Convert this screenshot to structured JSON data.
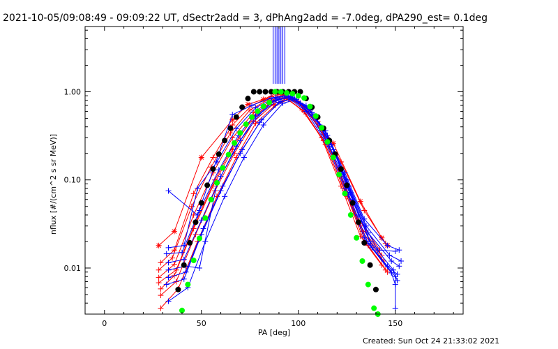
{
  "header": {
    "title": "2021-10-05/09:08:49 - 09:09:22 UT, dSectr2add = 3, dPhAng2add = -7.0deg, dPA290_est=  0.1deg"
  },
  "footer": {
    "created": "Created: Sun Oct 24 21:33:02 2021"
  },
  "chart_data": {
    "type": "line",
    "title": "2021-10-05/09:08:49 - 09:09:22 UT, dSectr2add = 3, dPhAng2add = -7.0deg, dPA290_est=  0.1deg",
    "xlabel": "PA [deg]",
    "ylabel": "nflux [#/(cm^2 s sr MeV)]",
    "xlim": [
      -10,
      185
    ],
    "ylim": [
      0.003,
      5.5
    ],
    "yscale": "log",
    "x_ticks": [
      0,
      50,
      100,
      150
    ],
    "x_tick_labels": [
      "0",
      "50",
      "100",
      "150"
    ],
    "y_ticks": [
      0.01,
      0.1,
      1.0
    ],
    "y_tick_labels": [
      "0.01",
      "0.10",
      "1.00"
    ],
    "grid": false,
    "colors": {
      "red_series": "#ff0000",
      "blue_series": "#0000ff",
      "black_model": "#000000",
      "green_model": "#00ff00"
    },
    "series": [
      {
        "color": "red",
        "marker": "star",
        "x": [
          28,
          36,
          50,
          66,
          74,
          82,
          89,
          96,
          106,
          118,
          132,
          143,
          146
        ],
        "y": [
          0.018,
          0.026,
          0.18,
          0.48,
          0.72,
          0.82,
          0.97,
          0.86,
          0.62,
          0.26,
          0.057,
          0.022,
          0.018
        ]
      },
      {
        "color": "red",
        "marker": "plus",
        "x": [
          29,
          36,
          46,
          56,
          66,
          76,
          86,
          92,
          100,
          110,
          122,
          134,
          145
        ],
        "y": [
          0.0115,
          0.016,
          0.07,
          0.18,
          0.42,
          0.7,
          0.88,
          0.95,
          0.78,
          0.46,
          0.16,
          0.045,
          0.019
        ]
      },
      {
        "color": "red",
        "marker": "plus",
        "x": [
          28,
          35,
          45,
          55,
          65,
          75,
          85,
          92,
          101,
          111,
          121,
          131,
          142
        ],
        "y": [
          0.0095,
          0.013,
          0.05,
          0.14,
          0.34,
          0.62,
          0.83,
          0.92,
          0.74,
          0.4,
          0.13,
          0.036,
          0.016
        ]
      },
      {
        "color": "red",
        "marker": "plus",
        "x": [
          28,
          36,
          46,
          56,
          66,
          77,
          86,
          93,
          102,
          112,
          122,
          132,
          143
        ],
        "y": [
          0.0078,
          0.011,
          0.04,
          0.12,
          0.3,
          0.58,
          0.8,
          0.9,
          0.7,
          0.36,
          0.11,
          0.03,
          0.014
        ]
      },
      {
        "color": "red",
        "marker": "plus",
        "x": [
          28,
          37,
          47,
          57,
          67,
          78,
          87,
          94,
          103,
          113,
          123,
          133,
          144
        ],
        "y": [
          0.0068,
          0.0095,
          0.033,
          0.1,
          0.26,
          0.54,
          0.78,
          0.88,
          0.66,
          0.33,
          0.095,
          0.026,
          0.012
        ]
      },
      {
        "color": "red",
        "marker": "plus",
        "x": [
          29,
          36,
          46,
          56,
          66,
          76,
          86,
          93,
          102,
          112,
          122,
          132,
          143
        ],
        "y": [
          0.0058,
          0.0082,
          0.028,
          0.085,
          0.22,
          0.5,
          0.75,
          0.86,
          0.62,
          0.3,
          0.085,
          0.023,
          0.0108
        ]
      },
      {
        "color": "red",
        "marker": "plus",
        "x": [
          29,
          37,
          47,
          57,
          67,
          77,
          87,
          94,
          103,
          113,
          124,
          134,
          145
        ],
        "y": [
          0.0049,
          0.007,
          0.024,
          0.075,
          0.2,
          0.46,
          0.72,
          0.84,
          0.6,
          0.28,
          0.075,
          0.02,
          0.0095
        ]
      },
      {
        "color": "red",
        "marker": "plus",
        "x": [
          29,
          38,
          48,
          58,
          68,
          78,
          88,
          95,
          104,
          114,
          125,
          136,
          146
        ],
        "y": [
          0.0035,
          0.0058,
          0.02,
          0.065,
          0.18,
          0.44,
          0.7,
          0.82,
          0.56,
          0.25,
          0.065,
          0.018,
          0.009
        ]
      },
      {
        "color": "blue",
        "marker": "plus",
        "x": [
          33,
          48,
          66,
          76,
          86,
          93,
          101,
          111,
          121,
          131,
          141,
          150
        ],
        "y": [
          0.075,
          0.04,
          0.55,
          0.7,
          0.85,
          0.9,
          0.74,
          0.42,
          0.14,
          0.04,
          0.016,
          0.0155
        ]
      },
      {
        "color": "blue",
        "marker": "plus",
        "x": [
          33,
          41,
          48,
          58,
          68,
          78,
          88,
          95,
          104,
          114,
          124,
          134,
          146,
          152
        ],
        "y": [
          0.017,
          0.018,
          0.08,
          0.16,
          0.38,
          0.66,
          0.86,
          0.9,
          0.7,
          0.36,
          0.12,
          0.036,
          0.018,
          0.016
        ]
      },
      {
        "color": "blue",
        "marker": "plus",
        "x": [
          32,
          40,
          49,
          59,
          69,
          79,
          89,
          96,
          105,
          115,
          125,
          135,
          147,
          153
        ],
        "y": [
          0.0145,
          0.015,
          0.045,
          0.13,
          0.32,
          0.6,
          0.84,
          0.88,
          0.66,
          0.32,
          0.1,
          0.03,
          0.014,
          0.012
        ]
      },
      {
        "color": "blue",
        "marker": "plus",
        "x": [
          33,
          41,
          50,
          60,
          70,
          80,
          90,
          97,
          106,
          116,
          126,
          136,
          148,
          152
        ],
        "y": [
          0.0115,
          0.0125,
          0.035,
          0.11,
          0.28,
          0.56,
          0.82,
          0.86,
          0.62,
          0.28,
          0.085,
          0.025,
          0.012,
          0.0105
        ]
      },
      {
        "color": "blue",
        "marker": "plus",
        "x": [
          33,
          42,
          49,
          58,
          68,
          78,
          88,
          95,
          104,
          114,
          124,
          134,
          146,
          151
        ],
        "y": [
          0.0095,
          0.0105,
          0.01,
          0.09,
          0.24,
          0.52,
          0.8,
          0.85,
          0.6,
          0.27,
          0.08,
          0.022,
          0.0105,
          0.0085
        ]
      },
      {
        "color": "blue",
        "marker": "plus",
        "x": [
          33,
          42,
          51,
          61,
          71,
          81,
          91,
          98,
          107,
          117,
          127,
          137,
          149,
          151
        ],
        "y": [
          0.0078,
          0.009,
          0.028,
          0.085,
          0.22,
          0.48,
          0.78,
          0.84,
          0.58,
          0.25,
          0.072,
          0.02,
          0.0095,
          0.0072
        ]
      },
      {
        "color": "blue",
        "marker": "plus",
        "x": [
          32,
          41,
          50,
          60,
          70,
          80,
          90,
          97,
          106,
          116,
          126,
          136,
          148,
          150
        ],
        "y": [
          0.0065,
          0.0075,
          0.024,
          0.075,
          0.2,
          0.45,
          0.76,
          0.83,
          0.56,
          0.24,
          0.068,
          0.019,
          0.0088,
          0.0065
        ]
      },
      {
        "color": "blue",
        "marker": "plus",
        "x": [
          33,
          43,
          52,
          62,
          72,
          82,
          92,
          99,
          108,
          118,
          128,
          138,
          150,
          150
        ],
        "y": [
          0.0042,
          0.006,
          0.02,
          0.065,
          0.18,
          0.42,
          0.74,
          0.82,
          0.54,
          0.22,
          0.06,
          0.017,
          0.008,
          0.0035
        ]
      },
      {
        "color": "blue",
        "marker": "line",
        "x": [
          87,
          87
        ],
        "y": [
          1.23,
          5.5
        ]
      },
      {
        "color": "blue",
        "marker": "line",
        "x": [
          88,
          88
        ],
        "y": [
          1.23,
          5.5
        ]
      },
      {
        "color": "blue",
        "marker": "line",
        "x": [
          89,
          89
        ],
        "y": [
          1.23,
          5.5
        ]
      },
      {
        "color": "blue",
        "marker": "line",
        "x": [
          90,
          90
        ],
        "y": [
          1.23,
          5.5
        ]
      },
      {
        "color": "blue",
        "marker": "line",
        "x": [
          91,
          91
        ],
        "y": [
          1.23,
          5.5
        ]
      },
      {
        "color": "blue",
        "marker": "line",
        "x": [
          92,
          92
        ],
        "y": [
          1.23,
          5.5
        ]
      },
      {
        "color": "blue",
        "marker": "line",
        "x": [
          93,
          93
        ],
        "y": [
          1.23,
          5.5
        ]
      },
      {
        "color": "black",
        "marker": "dot",
        "model": "sin^13(PA)",
        "x": [
          35,
          38,
          41,
          44,
          47,
          50,
          53,
          56,
          59,
          62,
          65,
          68,
          71,
          74,
          77,
          80,
          83,
          86,
          89,
          92,
          95,
          98,
          101,
          104,
          107,
          110,
          113,
          116,
          119,
          122,
          125,
          128,
          131,
          134,
          137,
          140,
          143,
          145
        ],
        "y": [
          0.0029,
          0.0057,
          0.0108,
          0.0193,
          0.0331,
          0.0547,
          0.0869,
          0.1329,
          0.1962,
          0.2798,
          0.3862,
          0.5163,
          0.6686,
          0.8378,
          1.0,
          1.0,
          1.0,
          1.0,
          1.0,
          1.0,
          1.0,
          1.0,
          1.0,
          0.8378,
          0.6686,
          0.5163,
          0.3862,
          0.2798,
          0.1962,
          0.1329,
          0.0869,
          0.0547,
          0.0331,
          0.0193,
          0.0108,
          0.0057,
          0.0029,
          0.0019
        ]
      },
      {
        "color": "green",
        "marker": "dot",
        "model": "sin^17(PA)",
        "x": [
          40,
          43,
          46,
          49,
          52,
          55,
          58,
          61,
          64,
          67,
          70,
          73,
          76,
          79,
          82,
          85,
          88,
          91,
          94,
          97,
          100,
          103,
          106,
          109,
          112,
          115,
          118,
          121,
          124,
          127,
          130,
          133,
          136,
          139,
          141
        ],
        "y": [
          0.0033,
          0.0065,
          0.0122,
          0.0217,
          0.0369,
          0.0598,
          0.0925,
          0.1367,
          0.1934,
          0.2624,
          0.3416,
          0.4276,
          0.5163,
          0.603,
          0.684,
          0.7569,
          1.0,
          0.997,
          0.97,
          0.95,
          0.9,
          0.85,
          0.68,
          0.53,
          0.39,
          0.27,
          0.18,
          0.115,
          0.07,
          0.04,
          0.022,
          0.012,
          0.0065,
          0.0035,
          0.003
        ]
      }
    ]
  }
}
